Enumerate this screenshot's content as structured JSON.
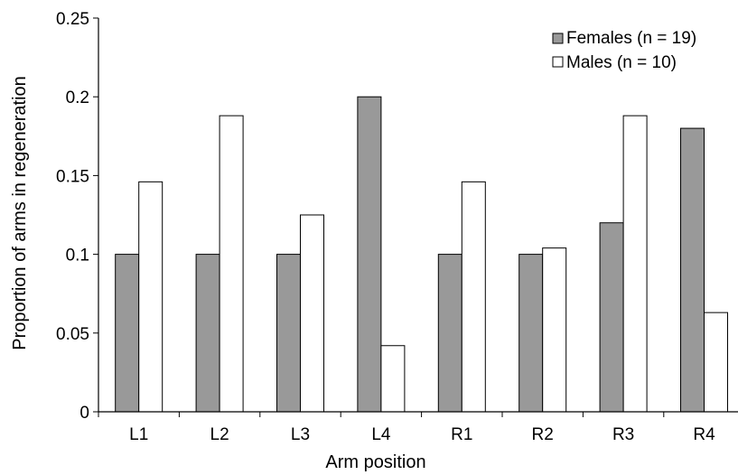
{
  "colors": {
    "females_fill": "#999999",
    "males_fill": "#ffffff",
    "bar_stroke": "#000000",
    "axis": "#000000"
  },
  "chart_data": {
    "type": "bar",
    "title": "",
    "xlabel": "Arm position",
    "ylabel": "Proportion of arms in regeneration",
    "categories": [
      "L1",
      "L2",
      "L3",
      "L4",
      "R1",
      "R2",
      "R3",
      "R4"
    ],
    "series": [
      {
        "name": "Females (n = 19)",
        "values": [
          0.1,
          0.1,
          0.1,
          0.2,
          0.1,
          0.1,
          0.12,
          0.18
        ]
      },
      {
        "name": "Males (n = 10)",
        "values": [
          0.146,
          0.188,
          0.125,
          0.042,
          0.146,
          0.104,
          0.188,
          0.063
        ]
      }
    ],
    "ylim": [
      0,
      0.25
    ],
    "yticks": [
      0,
      0.05,
      0.1,
      0.15,
      0.2,
      0.25
    ],
    "ytick_labels": [
      "0",
      "0.05",
      "0.1",
      "0.15",
      "0.2",
      "0.25"
    ],
    "grid": false,
    "legend_position": "top-right"
  }
}
